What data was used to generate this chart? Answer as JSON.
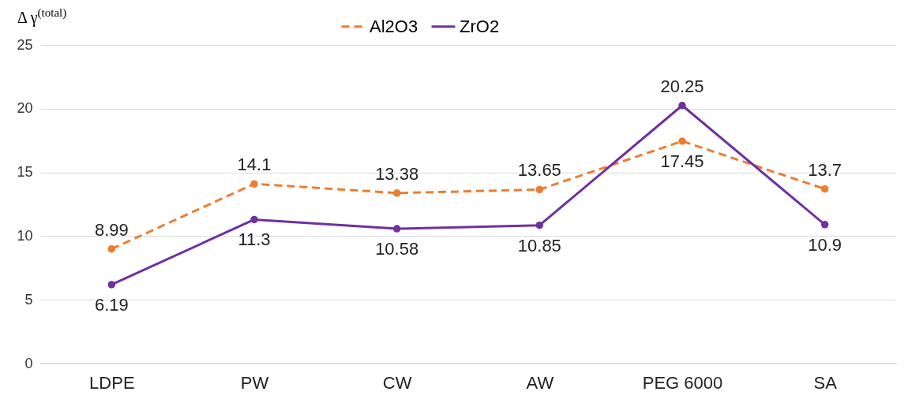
{
  "chart_data": {
    "type": "line",
    "ylabel": "Δ γ$^{(total)}$",
    "categories": [
      "LDPE",
      "PW",
      "CW",
      "AW",
      "PEG 6000",
      "SA"
    ],
    "series": [
      {
        "name": "Al2O3",
        "color": "#ed7d31",
        "line_style": "dashed",
        "values": [
          8.99,
          14.1,
          13.38,
          13.65,
          17.45,
          13.7
        ]
      },
      {
        "name": "ZrO2",
        "color": "#7030a0",
        "line_style": "solid",
        "values": [
          6.19,
          11.3,
          10.58,
          10.85,
          20.25,
          10.9
        ]
      }
    ],
    "ylim": [
      0,
      25
    ],
    "yticks": [
      0,
      5,
      10,
      15,
      20,
      25
    ],
    "grid": "y",
    "legend": "top",
    "marker": "circle",
    "data_labels": true
  }
}
